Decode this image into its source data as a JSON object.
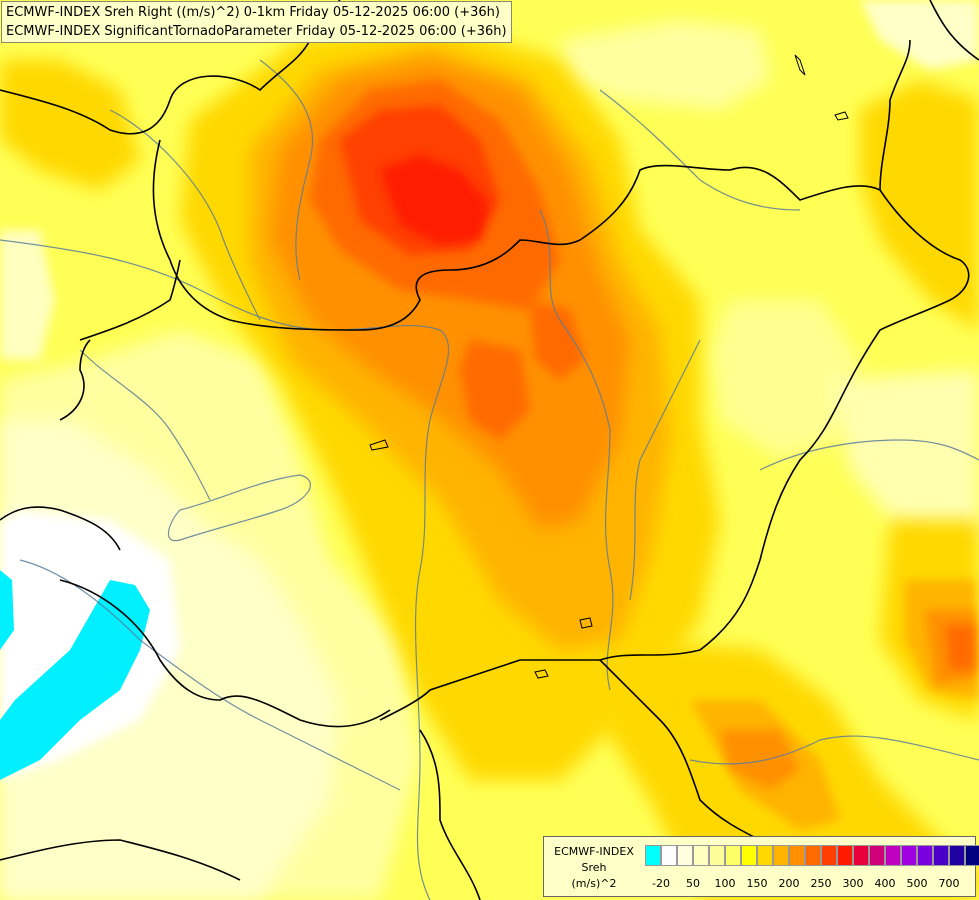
{
  "header": {
    "line1": "ECMWF-INDEX Sreh Right ((m/s)^2) 0-1km Friday 05-12-2025 06:00 (+36h)",
    "line2": "ECMWF-INDEX SignificantTornadoParameter Friday 05-12-2025 06:00 (+36h)"
  },
  "legend": {
    "model": "ECMWF-INDEX",
    "param": "Sreh",
    "unit": "(m/s)^2",
    "colors": [
      "#00ffff",
      "#ffffff",
      "#ffffe0",
      "#ffffc0",
      "#ffff99",
      "#ffff66",
      "#ffff00",
      "#ffd800",
      "#ffb400",
      "#ff9000",
      "#ff6a00",
      "#ff4000",
      "#ff1a00",
      "#e8003a",
      "#d20078",
      "#c000c0",
      "#a000e0",
      "#7a00e0",
      "#4a00c8",
      "#2000a0",
      "#000080"
    ],
    "ticks": [
      "-20",
      "50",
      "100",
      "150",
      "200",
      "250",
      "300",
      "400",
      "500",
      "700"
    ]
  }
}
